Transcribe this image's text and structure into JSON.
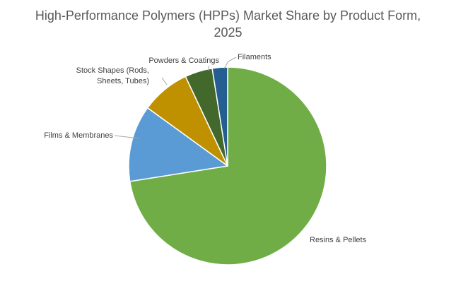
{
  "chart_data": {
    "type": "pie",
    "title_lines": [
      "High-Performance Polymers (HPPs) Market Share by Product Form,",
      "2025"
    ],
    "categories": [
      "Resins & Pellets",
      "Films & Membranes",
      "Stock Shapes (Rods, Sheets, Tubes)",
      "Powders & Coatings",
      "Filaments"
    ],
    "values": [
      72.5,
      12.5,
      8,
      4.5,
      2.5
    ],
    "unit": "%",
    "colors": [
      "#70ad47",
      "#5b9bd5",
      "#bf9000",
      "#43682b",
      "#255e91"
    ],
    "start_angle_deg": 0,
    "direction": "clockwise",
    "legend": "none",
    "labels_position": "outside with leader lines",
    "slice_border_color": "#ffffff"
  }
}
